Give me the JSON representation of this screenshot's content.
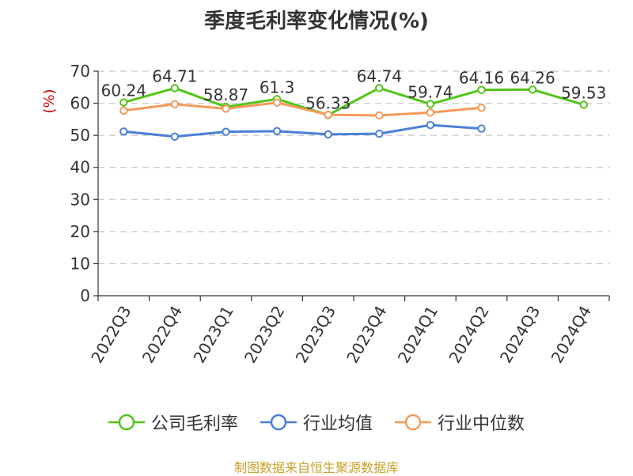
{
  "title": "季度毛利率变化情况(%)",
  "source_note": "制图数据来自恒生聚源数据库",
  "chart_data": {
    "type": "line",
    "title": "季度毛利率变化情况(%)",
    "ylabel": "(%)",
    "ylim": [
      0,
      70
    ],
    "yticks": [
      0,
      10,
      20,
      30,
      40,
      50,
      60,
      70
    ],
    "grid": true,
    "legend_position": "bottom",
    "categories": [
      "2022Q3",
      "2022Q4",
      "2023Q1",
      "2023Q2",
      "2023Q3",
      "2023Q4",
      "2024Q1",
      "2024Q2",
      "2024Q3",
      "2024Q4"
    ],
    "series": [
      {
        "name": "公司毛利率",
        "color": "#52c41a",
        "values": [
          60.24,
          64.71,
          58.87,
          61.3,
          56.33,
          64.74,
          59.74,
          64.16,
          64.26,
          59.53
        ],
        "labels": [
          "60.24",
          "64.71",
          "58.87",
          "61.3",
          "56.33",
          "64.74",
          "59.74",
          "64.16",
          "64.26",
          "59.53"
        ]
      },
      {
        "name": "行业均值",
        "color": "#4a7fd9",
        "values": [
          51.2,
          49.6,
          51.1,
          51.3,
          50.3,
          50.5,
          53.2,
          52.1,
          null,
          null
        ]
      },
      {
        "name": "行业中位数",
        "color": "#f59a5a",
        "values": [
          57.7,
          59.7,
          58.3,
          60.2,
          56.4,
          56.2,
          57.1,
          58.6,
          null,
          null
        ]
      }
    ]
  }
}
